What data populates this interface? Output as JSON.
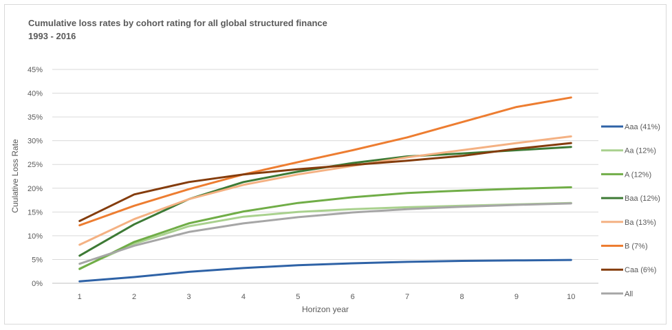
{
  "chart_data": {
    "type": "line",
    "title": "Cumulative loss rates by cohort rating for all global structured finance",
    "subtitle": "1993 - 2016",
    "xlabel": "Horizon year",
    "ylabel": "Cuulative Loss Rate",
    "x": [
      1,
      2,
      3,
      4,
      5,
      6,
      7,
      8,
      9,
      10
    ],
    "ylim": [
      0,
      45
    ],
    "yticks": [
      "0%",
      "5%",
      "10%",
      "15%",
      "20%",
      "25%",
      "30%",
      "35%",
      "40%",
      "45%"
    ],
    "grid": true,
    "legend": "right",
    "series": [
      {
        "name": "Aaa (41%)",
        "color": "#2e62a6",
        "values": [
          0.4,
          1.3,
          2.4,
          3.2,
          3.8,
          4.2,
          4.5,
          4.7,
          4.8,
          4.9
        ]
      },
      {
        "name": "Aa (12%)",
        "color": "#a9d18e",
        "values": [
          3.1,
          8.3,
          12.0,
          14.0,
          15.0,
          15.6,
          16.0,
          16.3,
          16.6,
          16.9
        ]
      },
      {
        "name": "A (12%)",
        "color": "#70ad47",
        "values": [
          3.0,
          8.7,
          12.6,
          15.1,
          16.9,
          18.1,
          19.0,
          19.5,
          19.9,
          20.2
        ]
      },
      {
        "name": "Baa (12%)",
        "color": "#3d7a35",
        "values": [
          5.8,
          12.4,
          17.7,
          21.3,
          23.5,
          25.3,
          26.7,
          27.3,
          28.0,
          28.7
        ]
      },
      {
        "name": "Ba (13%)",
        "color": "#f4b183",
        "values": [
          8.1,
          13.5,
          17.7,
          20.7,
          22.9,
          24.7,
          26.5,
          28.0,
          29.5,
          30.9
        ]
      },
      {
        "name": "B (7%)",
        "color": "#ed7d31",
        "values": [
          12.2,
          16.3,
          19.8,
          22.9,
          25.5,
          28.0,
          30.7,
          33.9,
          37.1,
          39.1
        ]
      },
      {
        "name": "Caa (6%)",
        "color": "#843c0c",
        "values": [
          13.1,
          18.7,
          21.3,
          22.9,
          24.0,
          24.9,
          25.8,
          26.8,
          28.3,
          29.5
        ]
      },
      {
        "name": "All",
        "color": "#a6a6a6",
        "values": [
          4.1,
          7.9,
          10.8,
          12.6,
          13.9,
          14.9,
          15.6,
          16.1,
          16.5,
          16.8
        ]
      }
    ]
  }
}
